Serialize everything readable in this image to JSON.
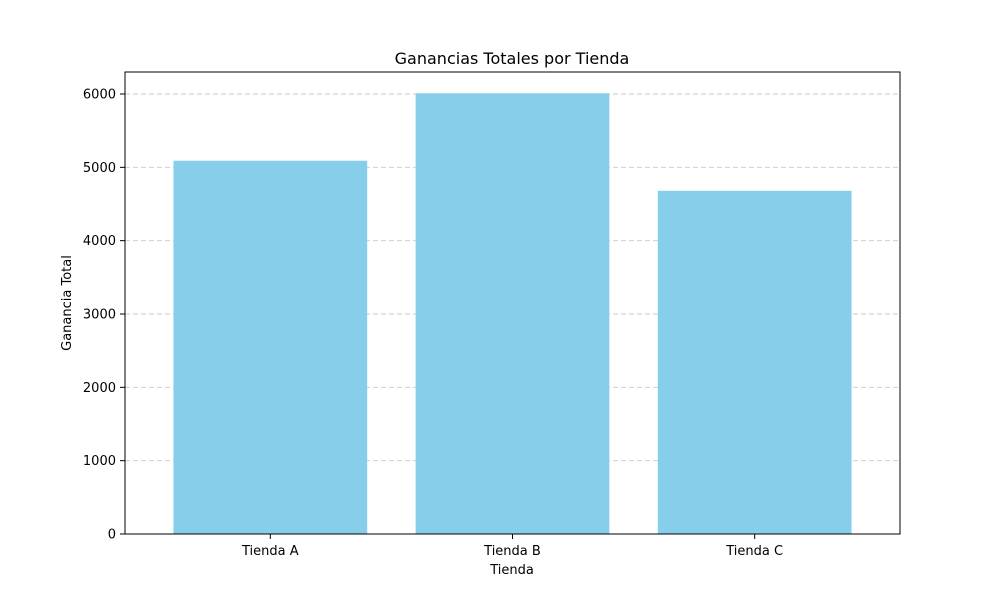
{
  "chart_data": {
    "type": "bar",
    "title": "Ganancias Totales por Tienda",
    "xlabel": "Tienda",
    "ylabel": "Ganancia Total",
    "categories": [
      "Tienda A",
      "Tienda B",
      "Tienda C"
    ],
    "values": [
      5090,
      6010,
      4680
    ],
    "ylim": [
      0,
      6300
    ],
    "yticks": [
      0,
      1000,
      2000,
      3000,
      4000,
      5000,
      6000
    ],
    "grid": "y-dashed",
    "bar_color": "#87ceeb"
  }
}
